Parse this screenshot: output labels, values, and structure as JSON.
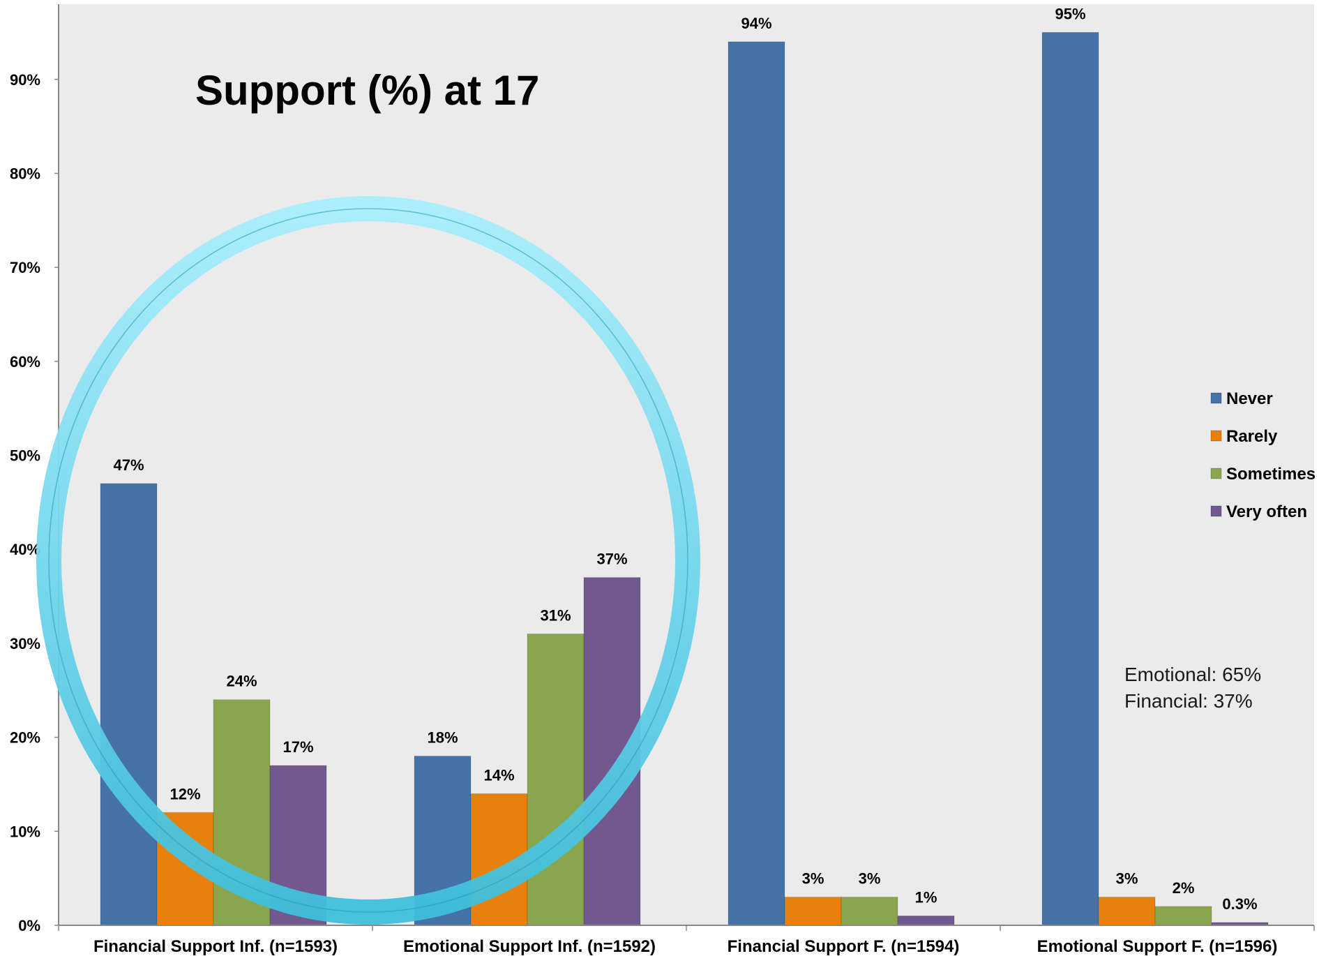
{
  "chart_data": {
    "type": "bar",
    "title": "Support (%) at 17",
    "categories": [
      "Financial Support Inf. (n=1593)",
      "Emotional Support Inf. (n=1592)",
      "Financial Support F. (n=1594)",
      "Emotional Support F. (n=1596)"
    ],
    "series": [
      {
        "name": "Never",
        "color": "#4572a7",
        "values": [
          47,
          18,
          94,
          95
        ],
        "labels": [
          "47%",
          "18%",
          "94%",
          "95%"
        ]
      },
      {
        "name": "Rarely",
        "color": "#e8800c",
        "values": [
          12,
          14,
          3,
          3
        ],
        "labels": [
          "12%",
          "14%",
          "3%",
          "3%"
        ]
      },
      {
        "name": "Sometimes",
        "color": "#89a54e",
        "values": [
          24,
          31,
          3,
          2
        ],
        "labels": [
          "24%",
          "31%",
          "3%",
          "2%"
        ]
      },
      {
        "name": "Very often",
        "color": "#71588f",
        "values": [
          17,
          37,
          1,
          0.3
        ],
        "labels": [
          "17%",
          "37%",
          "1%",
          "0.3%"
        ]
      }
    ],
    "ylim": [
      0,
      98
    ],
    "yticks": [
      0,
      10,
      20,
      30,
      40,
      50,
      60,
      70,
      80,
      90
    ],
    "ytick_labels": [
      "0%",
      "10%",
      "20%",
      "30%",
      "40%",
      "50%",
      "60%",
      "70%",
      "80%",
      "90%"
    ],
    "xlabel": "",
    "ylabel": "",
    "grid": false,
    "legend_position": "right",
    "annotations": [
      "Emotional: 65%",
      "Financial: 37%"
    ],
    "highlight": {
      "shape": "circle",
      "color": "#4cc8e4",
      "around": [
        "Financial Support Inf. (n=1593)",
        "Emotional Support Inf. (n=1592)"
      ]
    },
    "colors": {
      "plot_background": "#ebebeb",
      "axis": "#888888"
    }
  }
}
